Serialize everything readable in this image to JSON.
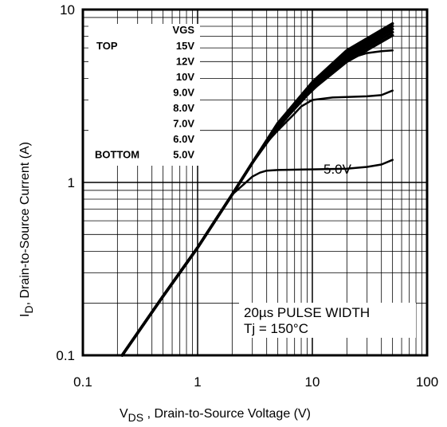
{
  "chart_data": {
    "type": "line",
    "x_scale": "log",
    "y_scale": "log",
    "xlim": [
      0.1,
      100
    ],
    "ylim": [
      0.1,
      10
    ],
    "x_ticks": [
      "0.1",
      "1",
      "10",
      "100"
    ],
    "y_ticks": [
      "0.1",
      "1",
      "10"
    ],
    "xlabel_main": "V",
    "xlabel_sub": "DS",
    "xlabel_rest": " , Drain-to-Source Voltage (V)",
    "ylabel_main": "I",
    "ylabel_sub": "D",
    "ylabel_rest": ",  Drain-to-Source Current  (A)",
    "grid": true,
    "legend": {
      "header": "VGS",
      "top_label": "TOP",
      "bottom_label": "BOTTOM",
      "entries": [
        "15V",
        "12V",
        "10V",
        "9.0V",
        "8.0V",
        "7.0V",
        "6.0V",
        "5.0V"
      ]
    },
    "curve_label": "5.0V",
    "annotation_line1": "20µs PULSE  WIDTH",
    "annotation_line2": "Tj = 150°C",
    "series": [
      {
        "x": [
          0.22,
          0.5,
          1,
          2,
          3,
          5,
          10,
          20,
          50
        ],
        "y": [
          0.1,
          0.22,
          0.42,
          0.85,
          1.3,
          2.2,
          3.8,
          5.8,
          8.3
        ]
      },
      {
        "x": [
          0.22,
          0.5,
          1,
          2,
          3,
          5,
          10,
          20,
          50
        ],
        "y": [
          0.1,
          0.22,
          0.42,
          0.85,
          1.3,
          2.2,
          3.7,
          5.6,
          8.0
        ]
      },
      {
        "x": [
          0.22,
          0.5,
          1,
          2,
          3,
          5,
          10,
          20,
          50
        ],
        "y": [
          0.1,
          0.22,
          0.42,
          0.85,
          1.3,
          2.15,
          3.6,
          5.4,
          7.7
        ]
      },
      {
        "x": [
          0.22,
          0.5,
          1,
          2,
          3,
          5,
          10,
          20,
          50
        ],
        "y": [
          0.1,
          0.22,
          0.42,
          0.85,
          1.3,
          2.1,
          3.5,
          5.2,
          7.4
        ]
      },
      {
        "x": [
          0.22,
          0.5,
          1,
          2,
          3,
          5,
          10,
          20,
          50
        ],
        "y": [
          0.1,
          0.22,
          0.42,
          0.85,
          1.3,
          2.1,
          3.45,
          5.0,
          7.1
        ]
      },
      {
        "x": [
          0.22,
          0.5,
          1,
          2,
          3,
          5,
          8,
          10,
          15,
          20,
          25,
          30,
          40,
          50
        ],
        "y": [
          0.1,
          0.22,
          0.42,
          0.85,
          1.3,
          2.05,
          2.95,
          3.4,
          4.4,
          5.0,
          5.4,
          5.6,
          5.75,
          5.8
        ]
      },
      {
        "x": [
          0.22,
          0.5,
          1,
          2,
          3,
          4,
          5,
          7,
          8,
          10,
          15,
          20,
          30,
          40,
          50
        ],
        "y": [
          0.1,
          0.22,
          0.42,
          0.85,
          1.3,
          1.7,
          2.0,
          2.5,
          2.75,
          3.0,
          3.1,
          3.12,
          3.15,
          3.2,
          3.4
        ]
      },
      {
        "x": [
          0.22,
          0.5,
          1,
          2,
          2.5,
          3,
          3.5,
          4,
          5,
          10,
          20,
          30,
          40,
          50
        ],
        "y": [
          0.1,
          0.22,
          0.42,
          0.85,
          0.97,
          1.08,
          1.14,
          1.17,
          1.18,
          1.19,
          1.2,
          1.23,
          1.27,
          1.35
        ]
      }
    ]
  }
}
